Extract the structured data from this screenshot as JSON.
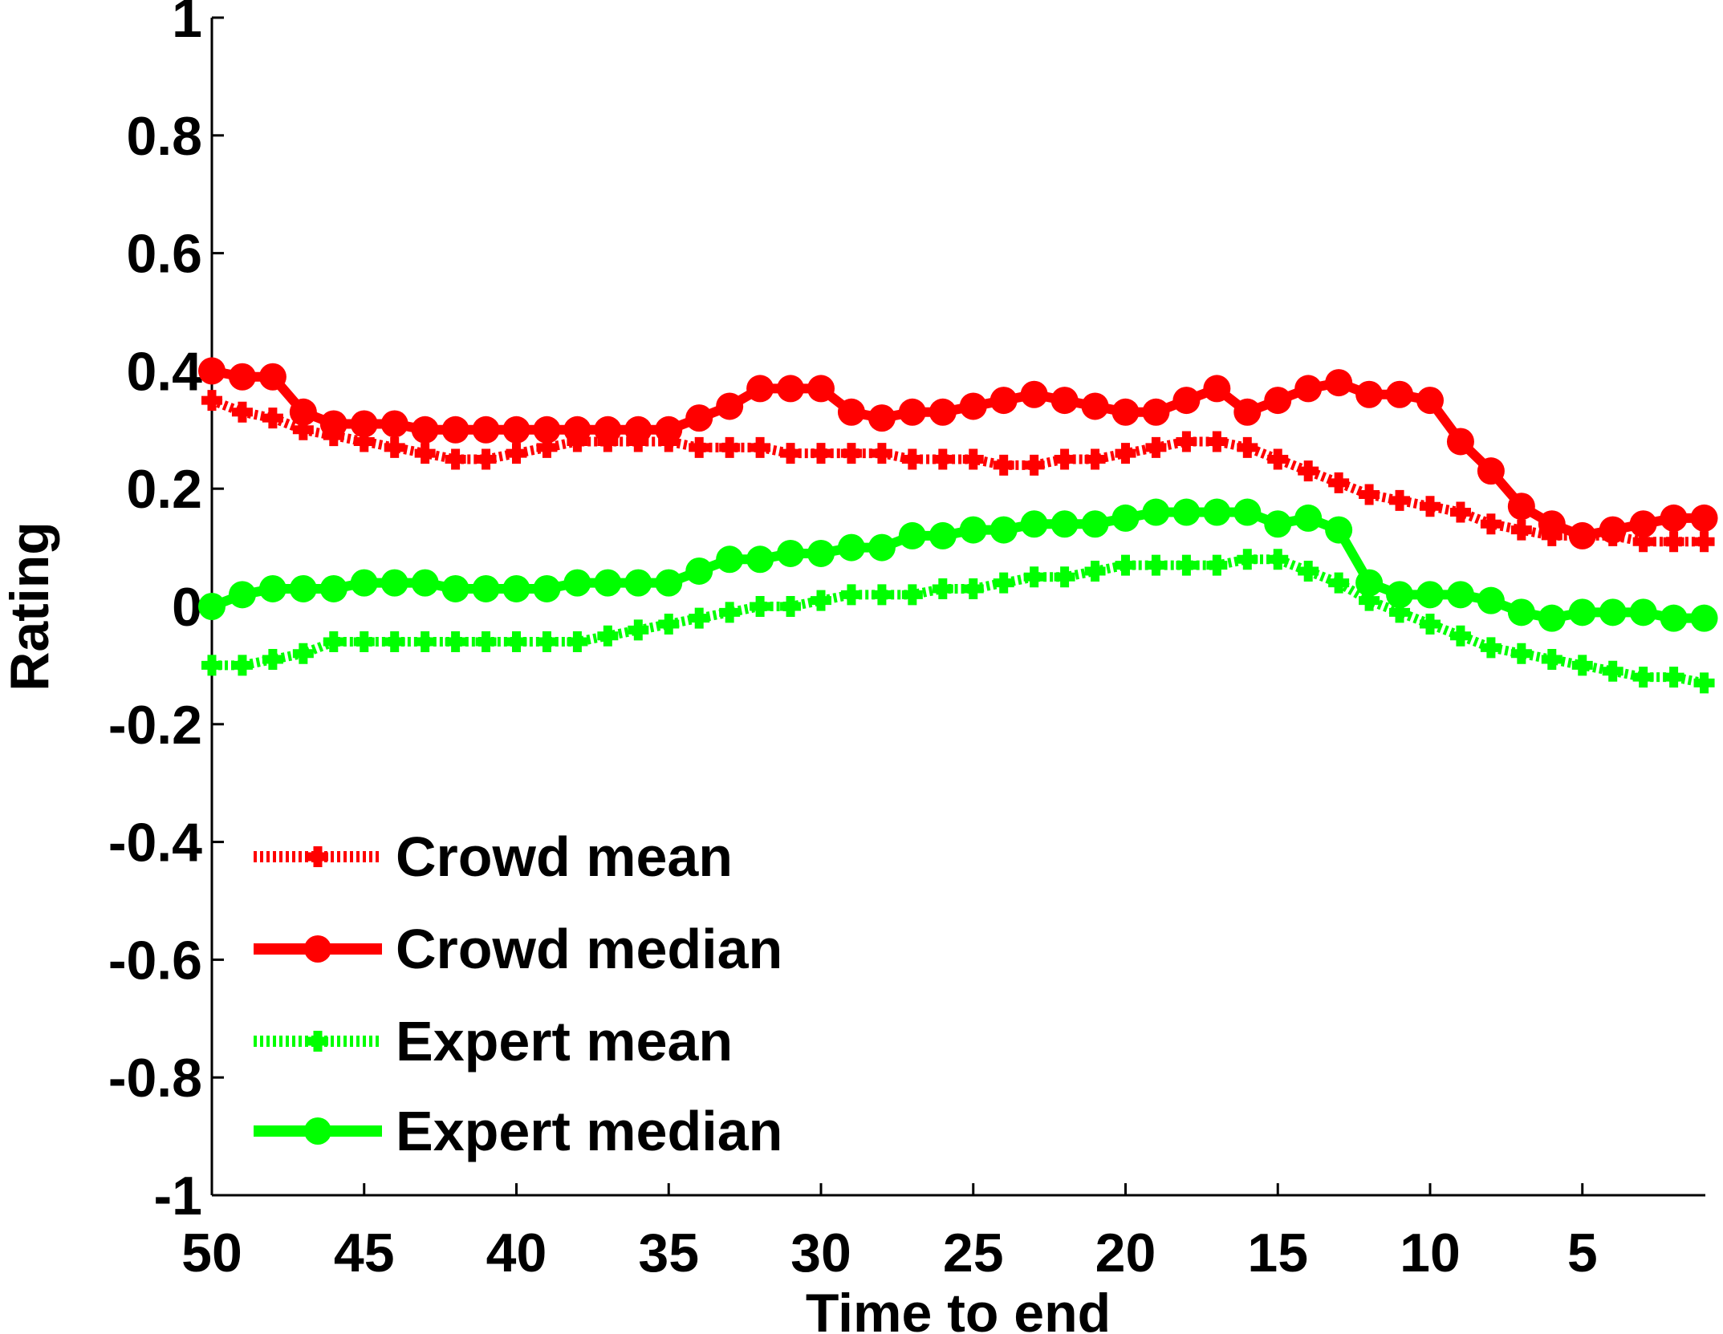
{
  "chart_data": {
    "type": "line",
    "title": "",
    "xlabel": "Time to end",
    "ylabel": "Rating",
    "xlim": [
      50,
      1
    ],
    "ylim": [
      -1,
      1
    ],
    "x_reversed": true,
    "grid": false,
    "legend_position": "bottom-left",
    "xticks": [
      50,
      45,
      40,
      35,
      30,
      25,
      20,
      15,
      10,
      5
    ],
    "xtick_labels": [
      "50",
      "45",
      "40",
      "35",
      "30",
      "25",
      "20",
      "15",
      "10",
      "5"
    ],
    "yticks": [
      1,
      0.8,
      0.6,
      0.4,
      0.2,
      0,
      -0.2,
      -0.4,
      -0.6,
      -0.8,
      -1
    ],
    "ytick_labels": [
      "1",
      "0.8",
      "0.6",
      "0.4",
      "0.2",
      "0",
      "-0.2",
      "-0.4",
      "-0.6",
      "-0.8",
      "-1"
    ],
    "x": [
      50,
      49,
      48,
      47,
      46,
      45,
      44,
      43,
      42,
      41,
      40,
      39,
      38,
      37,
      36,
      35,
      34,
      33,
      32,
      31,
      30,
      29,
      28,
      27,
      26,
      25,
      24,
      23,
      22,
      21,
      20,
      19,
      18,
      17,
      16,
      15,
      14,
      13,
      12,
      11,
      10,
      9,
      8,
      7,
      6,
      5,
      4,
      3,
      2,
      1
    ],
    "series": [
      {
        "name": "Crowd mean",
        "color": "#ff0000",
        "line_style": "dotted",
        "marker": "plus",
        "values": [
          0.35,
          0.33,
          0.32,
          0.3,
          0.29,
          0.28,
          0.27,
          0.26,
          0.25,
          0.25,
          0.26,
          0.27,
          0.28,
          0.28,
          0.28,
          0.28,
          0.27,
          0.27,
          0.27,
          0.26,
          0.26,
          0.26,
          0.26,
          0.25,
          0.25,
          0.25,
          0.24,
          0.24,
          0.25,
          0.25,
          0.26,
          0.27,
          0.28,
          0.28,
          0.27,
          0.25,
          0.23,
          0.21,
          0.19,
          0.18,
          0.17,
          0.16,
          0.14,
          0.13,
          0.12,
          0.12,
          0.12,
          0.11,
          0.11,
          0.11
        ]
      },
      {
        "name": "Crowd median",
        "color": "#ff0000",
        "line_style": "solid",
        "marker": "circle",
        "values": [
          0.4,
          0.39,
          0.39,
          0.33,
          0.31,
          0.31,
          0.31,
          0.3,
          0.3,
          0.3,
          0.3,
          0.3,
          0.3,
          0.3,
          0.3,
          0.3,
          0.32,
          0.34,
          0.37,
          0.37,
          0.37,
          0.33,
          0.32,
          0.33,
          0.33,
          0.34,
          0.35,
          0.36,
          0.35,
          0.34,
          0.33,
          0.33,
          0.35,
          0.37,
          0.33,
          0.35,
          0.37,
          0.38,
          0.36,
          0.36,
          0.35,
          0.28,
          0.23,
          0.17,
          0.14,
          0.12,
          0.13,
          0.14,
          0.15,
          0.15
        ]
      },
      {
        "name": "Expert mean",
        "color": "#00ff00",
        "line_style": "dotted",
        "marker": "plus",
        "values": [
          -0.1,
          -0.1,
          -0.09,
          -0.08,
          -0.06,
          -0.06,
          -0.06,
          -0.06,
          -0.06,
          -0.06,
          -0.06,
          -0.06,
          -0.06,
          -0.05,
          -0.04,
          -0.03,
          -0.02,
          -0.01,
          0.0,
          0.0,
          0.01,
          0.02,
          0.02,
          0.02,
          0.03,
          0.03,
          0.04,
          0.05,
          0.05,
          0.06,
          0.07,
          0.07,
          0.07,
          0.07,
          0.08,
          0.08,
          0.06,
          0.04,
          0.01,
          -0.01,
          -0.03,
          -0.05,
          -0.07,
          -0.08,
          -0.09,
          -0.1,
          -0.11,
          -0.12,
          -0.12,
          -0.13
        ]
      },
      {
        "name": "Expert median",
        "color": "#00ff00",
        "line_style": "solid",
        "marker": "circle",
        "values": [
          0.0,
          0.02,
          0.03,
          0.03,
          0.03,
          0.04,
          0.04,
          0.04,
          0.03,
          0.03,
          0.03,
          0.03,
          0.04,
          0.04,
          0.04,
          0.04,
          0.06,
          0.08,
          0.08,
          0.09,
          0.09,
          0.1,
          0.1,
          0.12,
          0.12,
          0.13,
          0.13,
          0.14,
          0.14,
          0.14,
          0.15,
          0.16,
          0.16,
          0.16,
          0.16,
          0.14,
          0.15,
          0.13,
          0.04,
          0.02,
          0.02,
          0.02,
          0.01,
          -0.01,
          -0.02,
          -0.01,
          -0.01,
          -0.01,
          -0.02,
          -0.02
        ]
      }
    ]
  }
}
